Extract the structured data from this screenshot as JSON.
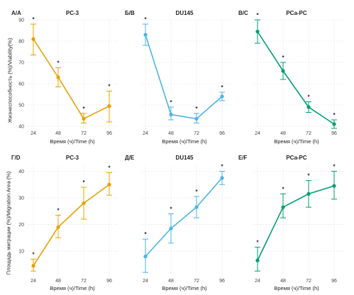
{
  "chart_data": [
    {
      "panel_label": "А/A",
      "title": "PC-3",
      "type": "line",
      "x": [
        24,
        48,
        72,
        96
      ],
      "values": [
        81,
        63,
        43.5,
        49.5
      ],
      "err_low": [
        73.5,
        58.5,
        41.5,
        42
      ],
      "err_high": [
        88,
        67.5,
        46,
        56.5
      ],
      "significant": [
        true,
        true,
        true,
        true
      ],
      "color": "#E8A000",
      "ylim": [
        40,
        90
      ],
      "yticks": [
        40,
        50,
        60,
        70,
        80,
        90
      ],
      "xlabel": "Время (ч)/Time (h)",
      "ylabel": "Жизнеспособность (%)/Viability(%)"
    },
    {
      "panel_label": "Б/B",
      "title": "DU145",
      "type": "line",
      "x": [
        24,
        48,
        72,
        96
      ],
      "values": [
        83,
        45.5,
        43.5,
        54
      ],
      "err_low": [
        78,
        43,
        41.5,
        52
      ],
      "err_high": [
        88,
        49,
        46,
        56
      ],
      "significant": [
        true,
        true,
        true,
        true
      ],
      "color": "#4DB3E6",
      "ylim": [
        40,
        90
      ],
      "yticks": [
        40,
        50,
        60,
        70,
        80,
        90
      ],
      "xlabel": "Время (ч)/Time (h)",
      "ylabel": ""
    },
    {
      "panel_label": "В/C",
      "title": "PCa-PC",
      "type": "line",
      "x": [
        24,
        48,
        72,
        96
      ],
      "values": [
        84.5,
        66,
        49,
        41
      ],
      "err_low": [
        79,
        62,
        46.5,
        39
      ],
      "err_high": [
        90,
        70,
        51.5,
        43
      ],
      "significant": [
        true,
        true,
        true,
        true
      ],
      "color": "#009E73",
      "ylim": [
        40,
        90
      ],
      "yticks": [
        40,
        50,
        60,
        70,
        80,
        90
      ],
      "xlabel": "Время (ч)/Time (h)",
      "ylabel": ""
    },
    {
      "panel_label": "Г/D",
      "title": "PC-3",
      "type": "line",
      "x": [
        24,
        48,
        72,
        96
      ],
      "values": [
        4.5,
        19,
        28,
        35
      ],
      "err_low": [
        2.5,
        15,
        22,
        31
      ],
      "err_high": [
        7,
        23.5,
        34,
        39.5
      ],
      "significant": [
        true,
        true,
        true,
        true
      ],
      "color": "#E8A000",
      "ylim": [
        1.5,
        42
      ],
      "yticks": [
        10,
        20,
        30,
        40
      ],
      "xlabel": "Время (ч)/Time (h)",
      "ylabel": "Площадь миграции (%)/Migration Area (%)"
    },
    {
      "panel_label": "Д/E",
      "title": "DU145",
      "type": "line",
      "x": [
        24,
        48,
        72,
        96
      ],
      "values": [
        8,
        18.5,
        26.5,
        37.5
      ],
      "err_low": [
        2,
        13,
        22.5,
        35
      ],
      "err_high": [
        14.5,
        24,
        30.5,
        40
      ],
      "significant": [
        true,
        true,
        true,
        true
      ],
      "color": "#4DB3E6",
      "ylim": [
        1.5,
        42
      ],
      "yticks": [
        10,
        20,
        30,
        40
      ],
      "xlabel": "Время (ч)/Time (h)",
      "ylabel": ""
    },
    {
      "panel_label": "Е/F",
      "title": "PCa-PC",
      "type": "line",
      "x": [
        24,
        48,
        72,
        96
      ],
      "values": [
        6.5,
        26.5,
        31.5,
        34.5
      ],
      "err_low": [
        2.5,
        22.5,
        26.5,
        29.5
      ],
      "err_high": [
        11.5,
        31.5,
        36.5,
        40
      ],
      "significant": [
        true,
        true,
        true,
        true
      ],
      "color": "#009E73",
      "ylim": [
        1.5,
        42
      ],
      "yticks": [
        10,
        20,
        30,
        40
      ],
      "xlabel": "Время (ч)/Time (h)",
      "ylabel": ""
    }
  ]
}
